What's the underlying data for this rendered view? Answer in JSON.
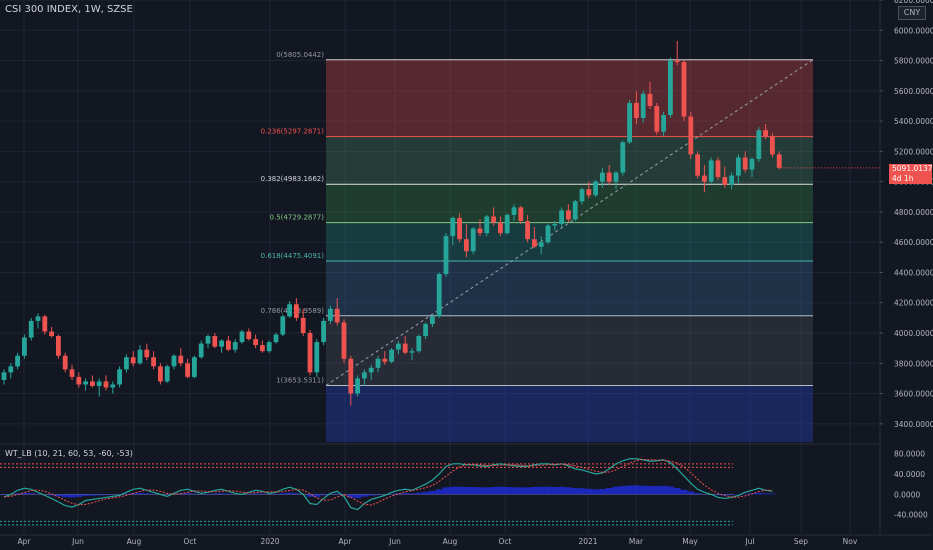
{
  "header": {
    "symbol_title": "CSI 300 INDEX, 1W, SZSE",
    "currency_badge": "CNY"
  },
  "price_tag": {
    "price": "5091.0137",
    "countdown": "4d 1h"
  },
  "indicator": {
    "label": "WT_LB (10, 21, 60, 53, -60, -53)"
  },
  "colors": {
    "background": "#131722",
    "up": "#26a69a",
    "down": "#ef5350",
    "grid": "#1f2433",
    "axis_text": "#b2b5be",
    "wt1": "#26a69a",
    "wt2": "#ef5350",
    "histogram": "#1e2bd4"
  },
  "chart_data": [
    {
      "type": "candlestick",
      "title": "CSI 300 INDEX, 1W, SZSE",
      "y_axis": {
        "position": "right",
        "ylim": [
          3280,
          6200
        ],
        "tick_labels": [
          "3400.0000",
          "3600.0000",
          "3800.0000",
          "4000.0000",
          "4200.0000",
          "4400.0000",
          "4600.0000",
          "4800.0000",
          "5000.0000",
          "5200.0000",
          "5400.0000",
          "5600.0000",
          "5800.0000",
          "6000.0000",
          "6200.0000"
        ]
      },
      "x_axis": {
        "tick_labels": [
          "Apr",
          "Jun",
          "Aug",
          "Oct",
          "2020",
          "Apr",
          "Jun",
          "Aug",
          "Oct",
          "2021",
          "Mar",
          "May",
          "Jul",
          "Sep",
          "Nov"
        ]
      },
      "grid": true,
      "ohlc_weekly_approx": [
        [
          3690,
          3760,
          3660,
          3740
        ],
        [
          3740,
          3800,
          3700,
          3780
        ],
        [
          3780,
          3870,
          3760,
          3850
        ],
        [
          3850,
          3990,
          3830,
          3970
        ],
        [
          3970,
          4100,
          3950,
          4080
        ],
        [
          4080,
          4130,
          4030,
          4110
        ],
        [
          4110,
          4120,
          3990,
          4010
        ],
        [
          4010,
          4040,
          3970,
          3980
        ],
        [
          3980,
          3990,
          3830,
          3850
        ],
        [
          3850,
          3870,
          3740,
          3760
        ],
        [
          3760,
          3790,
          3690,
          3710
        ],
        [
          3710,
          3740,
          3640,
          3660
        ],
        [
          3660,
          3700,
          3620,
          3680
        ],
        [
          3680,
          3720,
          3640,
          3650
        ],
        [
          3650,
          3700,
          3580,
          3680
        ],
        [
          3680,
          3720,
          3620,
          3640
        ],
        [
          3640,
          3680,
          3600,
          3660
        ],
        [
          3660,
          3780,
          3640,
          3760
        ],
        [
          3760,
          3860,
          3740,
          3840
        ],
        [
          3840,
          3880,
          3780,
          3800
        ],
        [
          3800,
          3920,
          3790,
          3890
        ],
        [
          3890,
          3930,
          3820,
          3840
        ],
        [
          3840,
          3880,
          3760,
          3780
        ],
        [
          3780,
          3800,
          3660,
          3680
        ],
        [
          3680,
          3790,
          3670,
          3780
        ],
        [
          3780,
          3860,
          3760,
          3850
        ],
        [
          3850,
          3900,
          3780,
          3800
        ],
        [
          3800,
          3830,
          3700,
          3710
        ],
        [
          3710,
          3850,
          3700,
          3840
        ],
        [
          3840,
          3950,
          3830,
          3930
        ],
        [
          3930,
          3990,
          3900,
          3980
        ],
        [
          3980,
          4000,
          3900,
          3910
        ],
        [
          3910,
          3960,
          3870,
          3950
        ],
        [
          3950,
          3980,
          3880,
          3890
        ],
        [
          3890,
          3960,
          3870,
          3940
        ],
        [
          3940,
          4020,
          3930,
          4010
        ],
        [
          4010,
          4030,
          3950,
          3960
        ],
        [
          3960,
          3990,
          3900,
          3920
        ],
        [
          3920,
          3950,
          3870,
          3880
        ],
        [
          3880,
          3950,
          3870,
          3940
        ],
        [
          3940,
          4000,
          3930,
          3990
        ],
        [
          3990,
          4120,
          3980,
          4110
        ],
        [
          4110,
          4210,
          4100,
          4190
        ],
        [
          4190,
          4230,
          4080,
          4100
        ],
        [
          4100,
          4160,
          3980,
          4000
        ],
        [
          4000,
          4020,
          3720,
          3740
        ],
        [
          3740,
          3960,
          3710,
          3940
        ],
        [
          3940,
          4100,
          3920,
          4080
        ],
        [
          4080,
          4180,
          4060,
          4160
        ],
        [
          4160,
          4230,
          4050,
          4070
        ],
        [
          4070,
          4090,
          3800,
          3830
        ],
        [
          3830,
          3850,
          3520,
          3600
        ],
        [
          3600,
          3720,
          3580,
          3700
        ],
        [
          3700,
          3760,
          3650,
          3740
        ],
        [
          3740,
          3790,
          3690,
          3770
        ],
        [
          3770,
          3850,
          3740,
          3830
        ],
        [
          3830,
          3880,
          3790,
          3810
        ],
        [
          3810,
          3900,
          3800,
          3890
        ],
        [
          3890,
          3950,
          3860,
          3930
        ],
        [
          3930,
          3980,
          3860,
          3870
        ],
        [
          3870,
          3900,
          3820,
          3880
        ],
        [
          3880,
          3990,
          3870,
          3980
        ],
        [
          3980,
          4070,
          3960,
          4060
        ],
        [
          4060,
          4120,
          4040,
          4110
        ],
        [
          4110,
          4400,
          4100,
          4390
        ],
        [
          4390,
          4660,
          4370,
          4640
        ],
        [
          4640,
          4770,
          4580,
          4760
        ],
        [
          4760,
          4790,
          4600,
          4620
        ],
        [
          4620,
          4720,
          4500,
          4540
        ],
        [
          4540,
          4700,
          4520,
          4690
        ],
        [
          4690,
          4750,
          4640,
          4660
        ],
        [
          4660,
          4780,
          4640,
          4770
        ],
        [
          4770,
          4830,
          4710,
          4730
        ],
        [
          4730,
          4770,
          4640,
          4660
        ],
        [
          4660,
          4790,
          4650,
          4780
        ],
        [
          4780,
          4850,
          4740,
          4830
        ],
        [
          4830,
          4840,
          4720,
          4740
        ],
        [
          4740,
          4780,
          4600,
          4620
        ],
        [
          4620,
          4700,
          4560,
          4570
        ],
        [
          4570,
          4640,
          4520,
          4600
        ],
        [
          4600,
          4720,
          4590,
          4710
        ],
        [
          4710,
          4740,
          4680,
          4720
        ],
        [
          4720,
          4830,
          4700,
          4810
        ],
        [
          4810,
          4850,
          4730,
          4750
        ],
        [
          4750,
          4880,
          4740,
          4870
        ],
        [
          4870,
          4960,
          4850,
          4950
        ],
        [
          4950,
          5000,
          4890,
          4910
        ],
        [
          4910,
          5010,
          4900,
          5000
        ],
        [
          5000,
          5090,
          4960,
          5060
        ],
        [
          5060,
          5110,
          4980,
          5000
        ],
        [
          5000,
          5070,
          4950,
          5060
        ],
        [
          5060,
          5270,
          5040,
          5260
        ],
        [
          5260,
          5540,
          5250,
          5520
        ],
        [
          5520,
          5600,
          5380,
          5420
        ],
        [
          5420,
          5600,
          5390,
          5580
        ],
        [
          5580,
          5660,
          5480,
          5500
        ],
        [
          5500,
          5520,
          5310,
          5330
        ],
        [
          5330,
          5460,
          5300,
          5440
        ],
        [
          5440,
          5820,
          5420,
          5800
        ],
        [
          5800,
          5930,
          5770,
          5790
        ],
        [
          5790,
          5800,
          5400,
          5430
        ],
        [
          5430,
          5460,
          5150,
          5180
        ],
        [
          5180,
          5200,
          5020,
          5040
        ],
        [
          5040,
          5110,
          4930,
          5000
        ],
        [
          5000,
          5160,
          4990,
          5140
        ],
        [
          5140,
          5160,
          5010,
          5030
        ],
        [
          5030,
          5100,
          4960,
          4980
        ],
        [
          4980,
          5060,
          4950,
          5040
        ],
        [
          5040,
          5180,
          4990,
          5160
        ],
        [
          5160,
          5200,
          5060,
          5080
        ],
        [
          5080,
          5160,
          5030,
          5150
        ],
        [
          5150,
          5360,
          5130,
          5340
        ],
        [
          5340,
          5380,
          5280,
          5300
        ],
        [
          5300,
          5320,
          5160,
          5180
        ],
        [
          5180,
          5200,
          5080,
          5091
        ]
      ],
      "fibonacci_levels": [
        {
          "label": "0(5805.0442)",
          "value": 5805.0442
        },
        {
          "label": "0.236(5297.2871)",
          "value": 5297.2871
        },
        {
          "label": "0.382(4983.1662)",
          "value": 4983.1662
        },
        {
          "label": "0.5(4729.2877)",
          "value": 4729.2877
        },
        {
          "label": "0.618(4475.4091)",
          "value": 4475.4091
        },
        {
          "label": "0.786(4113.9589)",
          "value": 4113.9589
        },
        {
          "label": "1(3653.5311)",
          "value": 3653.5311
        }
      ],
      "trend_line": {
        "from": 3653.5311,
        "to": 5805.0442
      }
    },
    {
      "type": "line",
      "title": "WT_LB (10, 21, 60, 53, -60, -53)",
      "y_axis": {
        "ylim": [
          -70,
          95
        ],
        "tick_labels": [
          "80.0000",
          "40.0000",
          "0.0000",
          "-40.0000"
        ]
      },
      "reference_levels": [
        60,
        53,
        -53,
        -60
      ],
      "series": [
        {
          "values": [
            -5,
            0,
            8,
            12,
            10,
            4,
            -2,
            -8,
            -15,
            -22,
            -25,
            -20,
            -12,
            -10,
            -8,
            -6,
            -4,
            -2,
            4,
            10,
            12,
            8,
            4,
            0,
            -4,
            2,
            8,
            10,
            6,
            2,
            4,
            8,
            10,
            6,
            2,
            0,
            4,
            8,
            6,
            2,
            4,
            10,
            14,
            10,
            0,
            -18,
            -20,
            -8,
            2,
            6,
            -4,
            -26,
            -30,
            -18,
            -10,
            -6,
            -2,
            4,
            8,
            10,
            8,
            14,
            20,
            28,
            40,
            55,
            60,
            60,
            58,
            58,
            56,
            55,
            58,
            60,
            58,
            56,
            55,
            55,
            58,
            60,
            60,
            58,
            60,
            56,
            50,
            48,
            44,
            40,
            42,
            50,
            60,
            66,
            70,
            70,
            68,
            65,
            66,
            68,
            62,
            50,
            36,
            22,
            10,
            4,
            0,
            -6,
            -8,
            -6,
            -2,
            4,
            8,
            12,
            8,
            6
          ]
        }
      ]
    }
  ]
}
